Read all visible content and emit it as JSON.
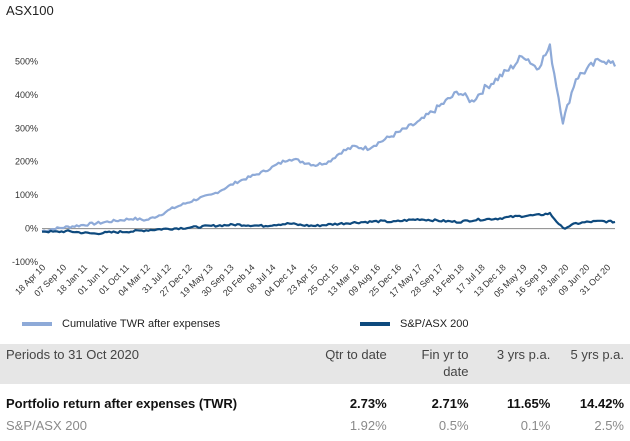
{
  "chart_data": {
    "type": "line",
    "title": "ASX100",
    "xlabel": "",
    "ylabel": "",
    "ylim": [
      -100,
      600
    ],
    "yticks": [
      "-100%",
      "0%",
      "100%",
      "200%",
      "300%",
      "400%",
      "500%"
    ],
    "ytick_values": [
      -100,
      0,
      100,
      200,
      300,
      400,
      500
    ],
    "x_ticks": [
      "18 Apr 10",
      "07 Sep 10",
      "18 Jan 11",
      "01 Jun 11",
      "01 Oct 11",
      "04 Mar 12",
      "31 Jul 12",
      "27 Dec 12",
      "19 May 13",
      "30 Sep 13",
      "20 Feb 14",
      "08 Jul 14",
      "04 Dec 14",
      "23 Apr 15",
      "25 Oct 15",
      "13 Mar 16",
      "09 Aug 16",
      "25 Dec 16",
      "17 May 17",
      "28 Sep 17",
      "18 Feb 18",
      "17 Jul 18",
      "13 Dec 18",
      "05 May 19",
      "16 Sep 19",
      "28 Jan 20",
      "09 Jun 20",
      "31 Oct 20"
    ],
    "grid": false,
    "legend_position": "bottom",
    "series": [
      {
        "name": "Cumulative TWR after expenses",
        "color": "#8EAAD8",
        "values": [
          -8,
          0,
          5,
          10,
          15,
          20,
          25,
          30,
          25,
          40,
          60,
          75,
          90,
          100,
          120,
          140,
          155,
          170,
          190,
          210,
          200,
          190,
          200,
          230,
          245,
          240,
          260,
          280,
          300,
          320,
          350,
          380,
          410,
          380,
          420,
          450,
          480,
          520,
          480,
          540,
          320,
          450,
          480,
          510,
          485
        ]
      },
      {
        "name": "S&P/ASX 200",
        "color": "#0E4A7E",
        "values": [
          -8,
          -10,
          -8,
          -12,
          -15,
          -12,
          -10,
          -8,
          -5,
          -2,
          0,
          2,
          5,
          8,
          10,
          12,
          10,
          8,
          12,
          15,
          10,
          8,
          12,
          15,
          18,
          20,
          22,
          20,
          25,
          28,
          25,
          22,
          20,
          25,
          28,
          30,
          35,
          38,
          40,
          45,
          0,
          15,
          20,
          22,
          20
        ]
      }
    ]
  },
  "table": {
    "headers": [
      "Periods to 31 Oct 2020",
      "Qtr to date",
      "Fin yr to date",
      "3 yrs p.a.",
      "5 yrs p.a."
    ],
    "rows": [
      {
        "label": "Portfolio return after expenses (TWR)",
        "values": [
          "2.73%",
          "2.71%",
          "11.65%",
          "14.42%"
        ]
      },
      {
        "label": "S&P/ASX 200",
        "values": [
          "1.92%",
          "0.5%",
          "0.1%",
          "2.5%"
        ]
      }
    ]
  }
}
